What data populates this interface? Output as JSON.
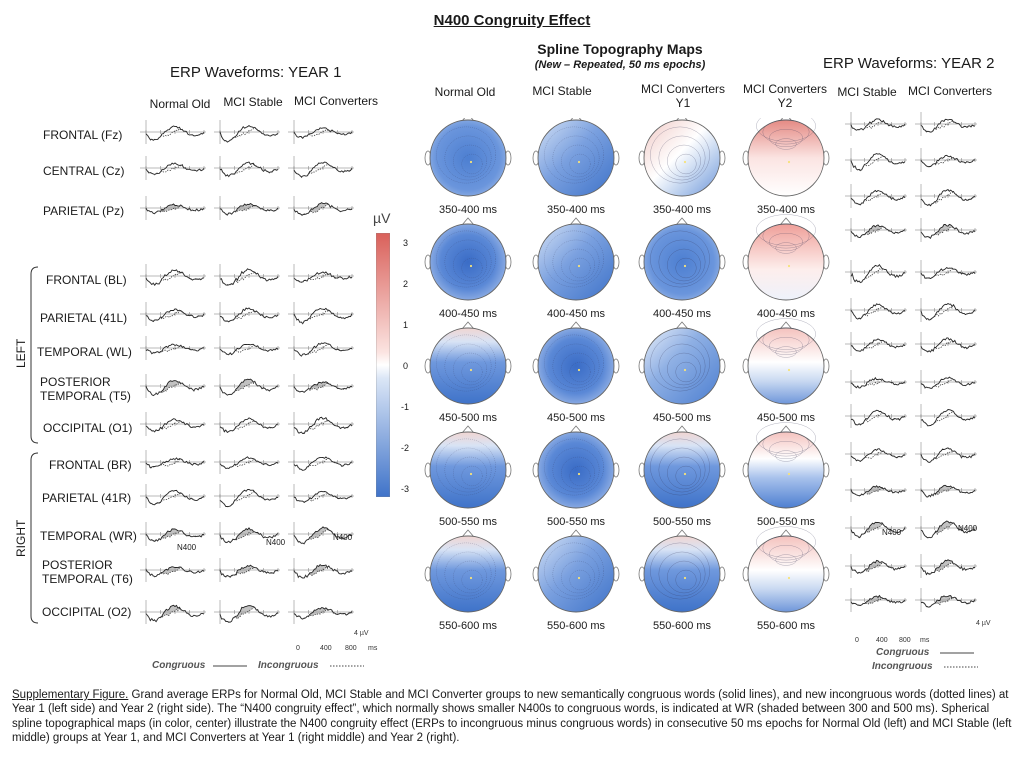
{
  "figure_title": "N400 Congruity Effect",
  "center_panel": {
    "title": "Spline Topography Maps",
    "subtitle": "(New – Repeated, 50 ms epochs)",
    "columns": [
      "Normal Old",
      "MCI Stable",
      "MCI Converters Y1",
      "MCI Converters Y2"
    ],
    "epochs": [
      "350-400 ms",
      "400-450 ms",
      "450-500 ms",
      "500-550 ms",
      "550-600 ms"
    ],
    "scale_unit": "µV",
    "scale_ticks": [
      "3",
      "2",
      "1",
      "0",
      "-1",
      "-2",
      "-3"
    ],
    "colors": {
      "positive": "#d9605a",
      "negative": "#3f73c9",
      "neutral": "#ffffff"
    }
  },
  "left_panel": {
    "title": "ERP Waveforms: YEAR 1",
    "columns": [
      "Normal Old",
      "MCI Stable",
      "MCI Converters"
    ],
    "rows": [
      {
        "label": "FRONTAL (Fz)"
      },
      {
        "label": "CENTRAL (Cz)"
      },
      {
        "label": "PARIETAL (Pz)"
      },
      {
        "label": "FRONTAL (BL)"
      },
      {
        "label": "PARIETAL (41L)"
      },
      {
        "label": "TEMPORAL (WL)"
      },
      {
        "label": "POSTERIOR TEMPORAL (T5)"
      },
      {
        "label": "OCCIPITAL (O1)"
      },
      {
        "label": "FRONTAL (BR)"
      },
      {
        "label": "PARIETAL (41R)"
      },
      {
        "label": "TEMPORAL (WR)"
      },
      {
        "label": "POSTERIOR TEMPORAL (T6)"
      },
      {
        "label": "OCCIPITAL (O2)"
      }
    ],
    "side_labels": [
      "LEFT",
      "RIGHT"
    ],
    "n400_label": "N400",
    "axis_ticks": [
      "0",
      "400",
      "800",
      "ms"
    ],
    "amp_label": "4 µV",
    "legend": {
      "congruous": "Congruous",
      "incongruous": "Incongruous"
    }
  },
  "right_panel": {
    "title": "ERP Waveforms: YEAR 2",
    "columns": [
      "MCI Stable",
      "MCI Converters"
    ],
    "n400_label": "N400",
    "axis_ticks": [
      "0",
      "400",
      "800",
      "ms"
    ],
    "amp_label": "4 µV",
    "legend": {
      "congruous": "Congruous",
      "incongruous": "Incongruous"
    }
  },
  "caption": {
    "title": "Supplementary Figure.",
    "text": " Grand average ERPs for Normal Old, MCI Stable and MCI Converter groups to new semantically congruous words (solid lines), and  new incongruous words (dotted lines) at Year 1 (left side) and Year 2 (right side). The “N400 congruity effect”, which normally shows smaller N400s to congruous words, is indicated at WR (shaded between 300 and 500 ms).  Spherical spline topographical maps (in color, center) illustrate the N400 congruity effect (ERPs to incongruous minus congruous words) in consecutive 50 ms epochs for Normal Old (left) and MCI Stable (left middle) groups at Year 1, and MCI Converters at Year 1 (right middle) and Year 2 (right)."
  }
}
